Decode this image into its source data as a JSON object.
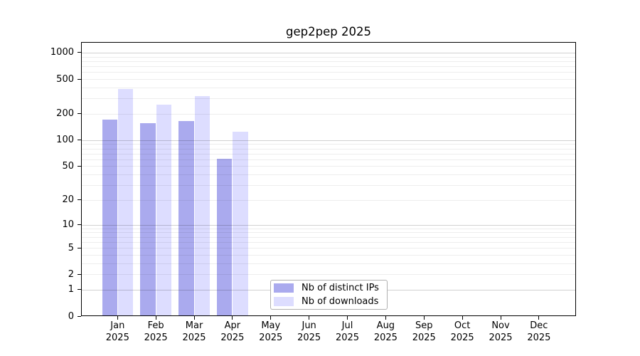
{
  "title": "gep2pep 2025",
  "chart_data": {
    "type": "bar",
    "title": "gep2pep 2025",
    "categories": [
      "Jan",
      "Feb",
      "Mar",
      "Apr",
      "May",
      "Jun",
      "Jul",
      "Aug",
      "Sep",
      "Oct",
      "Nov",
      "Dec"
    ],
    "category_year": "2025",
    "series": [
      {
        "name": "Nb of distinct IPs",
        "key": "distinct-ips",
        "color": "#aaaaee",
        "values": [
          172,
          156,
          166,
          61,
          0,
          0,
          0,
          0,
          0,
          0,
          0,
          0
        ]
      },
      {
        "name": "Nb of downloads",
        "key": "downloads",
        "color": "#ddddff",
        "values": [
          388,
          255,
          321,
          125,
          0,
          0,
          0,
          0,
          0,
          0,
          0,
          0
        ]
      }
    ],
    "y_scale": "log1p",
    "y_ticks": [
      0,
      1,
      2,
      5,
      10,
      20,
      50,
      100,
      200,
      500,
      1000
    ],
    "y_range": [
      0,
      1300
    ],
    "grid": "horizontal major+minor",
    "legend_position": "inside-bottom-center",
    "colors": {
      "background": "#ffffff",
      "axis": "#000000",
      "text": "#000000"
    }
  }
}
